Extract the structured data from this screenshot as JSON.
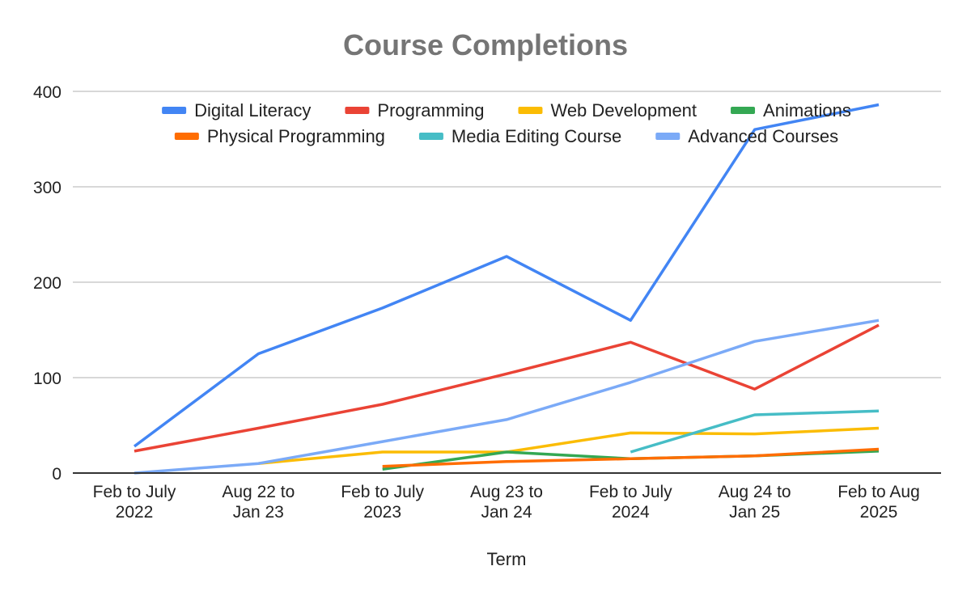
{
  "chart_data": {
    "type": "line",
    "title": "Course Completions",
    "xlabel": "Term",
    "ylabel": "",
    "ylim": [
      0,
      400
    ],
    "yticks": [
      0,
      100,
      200,
      300,
      400
    ],
    "grid": true,
    "legend_position": "top",
    "categories": [
      [
        "Feb to July",
        "2022"
      ],
      [
        "Aug 22 to",
        "Jan 23"
      ],
      [
        "Feb to July",
        "2023"
      ],
      [
        "Aug 23 to",
        "Jan 24"
      ],
      [
        "Feb to July",
        "2024"
      ],
      [
        "Aug 24 to",
        "Jan 25"
      ],
      [
        "Feb to Aug",
        "2025"
      ]
    ],
    "series": [
      {
        "name": "Digital Literacy",
        "color": "#4285F4",
        "values": [
          28,
          125,
          173,
          227,
          160,
          360,
          386
        ]
      },
      {
        "name": "Programming",
        "color": "#EA4335",
        "values": [
          23,
          47,
          72,
          104,
          137,
          88,
          155
        ]
      },
      {
        "name": "Web Development",
        "color": "#FBBC04",
        "values": [
          null,
          10,
          22,
          22,
          42,
          41,
          47
        ]
      },
      {
        "name": "Animations",
        "color": "#34A853",
        "values": [
          null,
          null,
          4,
          22,
          15,
          18,
          23
        ]
      },
      {
        "name": "Physical Programming",
        "color": "#FF6D01",
        "values": [
          null,
          null,
          7,
          12,
          15,
          18,
          25
        ]
      },
      {
        "name": "Media Editing Course",
        "color": "#46BDC6",
        "values": [
          null,
          null,
          null,
          null,
          22,
          61,
          65
        ]
      },
      {
        "name": "Advanced Courses",
        "color": "#7BAAF7",
        "values": [
          0,
          10,
          33,
          56,
          95,
          138,
          160
        ]
      }
    ]
  }
}
